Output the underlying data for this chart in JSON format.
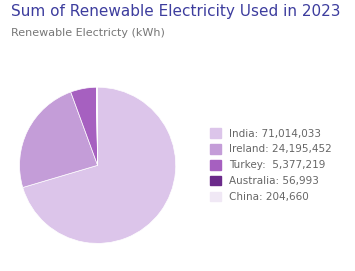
{
  "title": "Sum of Renewable Electricity Used in 2023",
  "subtitle": "Renewable Electricty (kWh)",
  "title_color": "#3d3d9e",
  "subtitle_color": "#777777",
  "labels": [
    "India",
    "Ireland",
    "Turkey",
    "Australia",
    "China"
  ],
  "values": [
    71014033,
    24195452,
    5377219,
    56993,
    204660
  ],
  "colors": [
    "#dcc5ea",
    "#c49dd8",
    "#a660c0",
    "#6b2a8a",
    "#f0e8f5"
  ],
  "legend_labels": [
    "India: 71,014,033",
    "Ireland: 24,195,452",
    "Turkey:  5,377,219",
    "Australia: 56,993",
    "China: 204,660"
  ],
  "background_color": "#ffffff",
  "title_fontsize": 11,
  "subtitle_fontsize": 8,
  "legend_fontsize": 7.5
}
